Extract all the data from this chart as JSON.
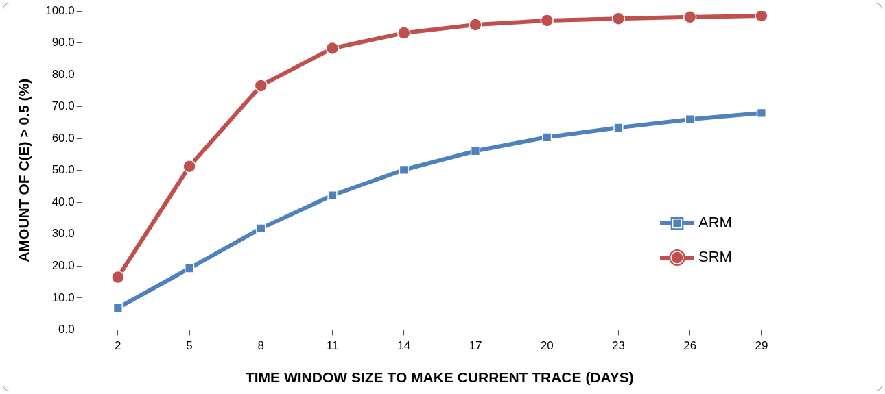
{
  "chart_data": {
    "type": "line",
    "xlabel": "TIME WINDOW SIZE TO MAKE CURRENT TRACE (DAYS)",
    "ylabel": "AMOUNT OF C(E) > 0.5 (%)",
    "categories": [
      "2",
      "5",
      "8",
      "11",
      "14",
      "17",
      "20",
      "23",
      "26",
      "29"
    ],
    "series": [
      {
        "name": "ARM",
        "color": "#4f81bd",
        "marker": "square",
        "values": [
          6.9,
          19.3,
          31.8,
          42.2,
          50.2,
          56.1,
          60.4,
          63.4,
          66.0,
          68.0
        ]
      },
      {
        "name": "SRM",
        "color": "#c0504d",
        "marker": "circle",
        "values": [
          16.5,
          51.3,
          76.6,
          88.3,
          93.1,
          95.7,
          97.0,
          97.6,
          98.1,
          98.5
        ]
      }
    ],
    "ylim": [
      0,
      100
    ],
    "yticks": [
      {
        "value": 0,
        "label": "0.0"
      },
      {
        "value": 10,
        "label": "10.0"
      },
      {
        "value": 20,
        "label": "20.0"
      },
      {
        "value": 30,
        "label": "30.0"
      },
      {
        "value": 40,
        "label": "40.0"
      },
      {
        "value": 50,
        "label": "50.0"
      },
      {
        "value": 60,
        "label": "60.0"
      },
      {
        "value": 70,
        "label": "70.0"
      },
      {
        "value": 80,
        "label": "80.0"
      },
      {
        "value": 90,
        "label": "90.0"
      },
      {
        "value": 100,
        "label": "100.0"
      }
    ],
    "grid": false,
    "legend": "right",
    "line_style": "solid"
  }
}
